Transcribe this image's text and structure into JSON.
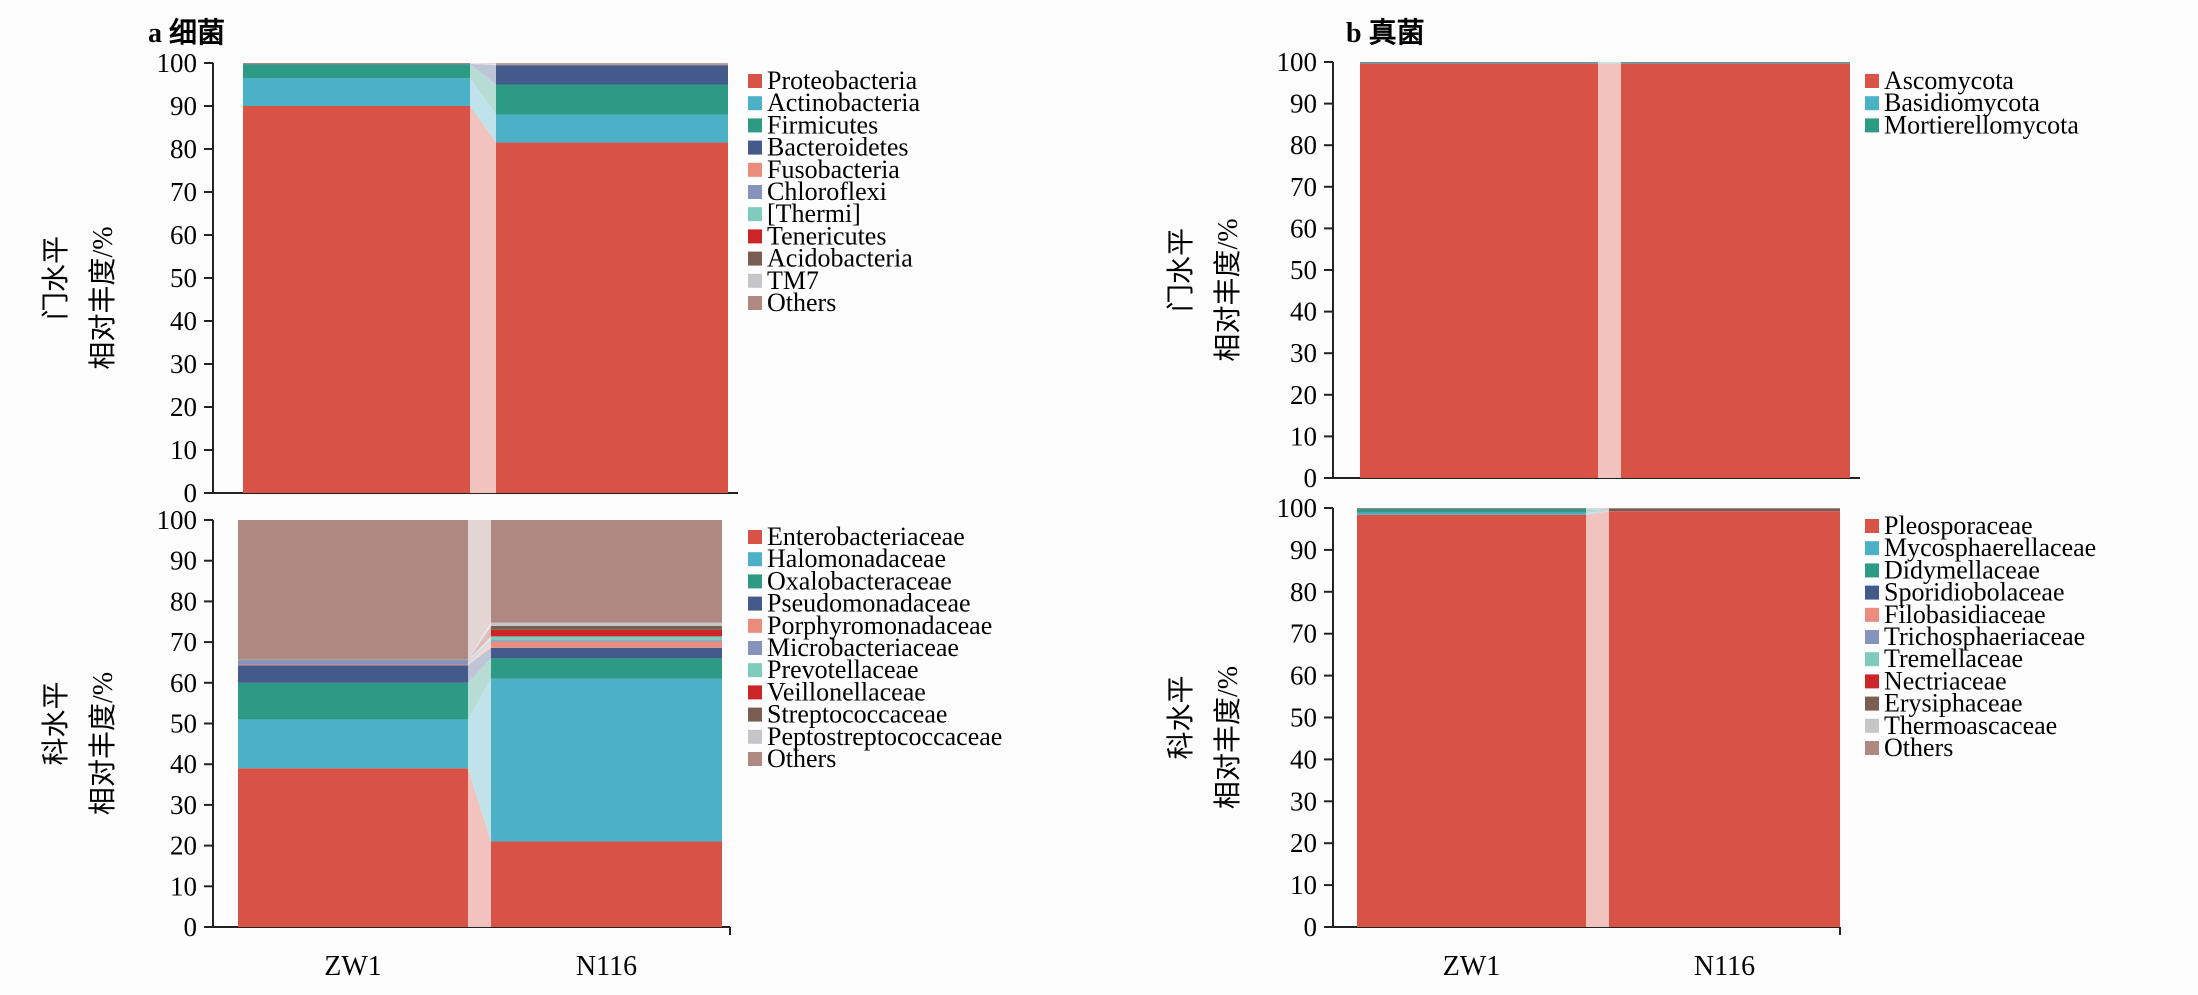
{
  "colors": {
    "red": "#d95246",
    "cyan": "#4cb0c6",
    "teal": "#2d9a85",
    "navy": "#445a8a",
    "salmon": "#ea8c7e",
    "lavender": "#8594bd",
    "mint": "#7fcbbd",
    "crimson": "#cc2528",
    "brown": "#7a5e52",
    "silver": "#c6c6c8",
    "mauve": "#b08882"
  },
  "panels": {
    "a": {
      "title": "a 细菌"
    },
    "b": {
      "title": "b 真菌"
    }
  },
  "chart_data": [
    {
      "id": "a-phylum",
      "type": "bar",
      "stacked": true,
      "title": "a 细菌",
      "ylabel_level": "门水平",
      "ylabel": "相对丰度/%",
      "ylim": [
        0,
        100
      ],
      "yticks": [
        0,
        10,
        20,
        30,
        40,
        50,
        60,
        70,
        80,
        90,
        100
      ],
      "categories": [
        "ZW1",
        "N116"
      ],
      "show_xlabels": false,
      "series": [
        {
          "name": "Proteobacteria",
          "color": "red",
          "values": [
            90.0,
            81.5
          ]
        },
        {
          "name": "Actinobacteria",
          "color": "cyan",
          "values": [
            6.5,
            6.5
          ]
        },
        {
          "name": "Firmicutes",
          "color": "teal",
          "values": [
            3.2,
            7.0
          ]
        },
        {
          "name": "Bacteroidetes",
          "color": "navy",
          "values": [
            0.1,
            4.5
          ]
        },
        {
          "name": "Fusobacteria",
          "color": "salmon",
          "values": [
            0.05,
            0.1
          ]
        },
        {
          "name": "Chloroflexi",
          "color": "lavender",
          "values": [
            0.05,
            0.1
          ]
        },
        {
          "name": "[Thermi]",
          "color": "mint",
          "values": [
            0.05,
            0.1
          ]
        },
        {
          "name": "Tenericutes",
          "color": "crimson",
          "values": [
            0.02,
            0.05
          ]
        },
        {
          "name": "Acidobacteria",
          "color": "brown",
          "values": [
            0.01,
            0.02
          ]
        },
        {
          "name": "TM7",
          "color": "silver",
          "values": [
            0.01,
            0.02
          ]
        },
        {
          "name": "Others",
          "color": "mauve",
          "values": [
            0.01,
            0.11
          ]
        }
      ]
    },
    {
      "id": "a-family",
      "type": "bar",
      "stacked": true,
      "ylabel_level": "科水平",
      "ylabel": "相对丰度/%",
      "ylim": [
        0,
        100
      ],
      "yticks": [
        0,
        10,
        20,
        30,
        40,
        50,
        60,
        70,
        80,
        90,
        100
      ],
      "categories": [
        "ZW1",
        "N116"
      ],
      "show_xlabels": true,
      "series": [
        {
          "name": "Enterobacteriaceae",
          "color": "red",
          "values": [
            39.0,
            21.0
          ]
        },
        {
          "name": "Halomonadaceae",
          "color": "cyan",
          "values": [
            12.0,
            40.0
          ]
        },
        {
          "name": "Oxalobacteraceae",
          "color": "teal",
          "values": [
            9.0,
            5.0
          ]
        },
        {
          "name": "Pseudomonadaceae",
          "color": "navy",
          "values": [
            4.3,
            2.6
          ]
        },
        {
          "name": "Porphyromonadaceae",
          "color": "salmon",
          "values": [
            0.2,
            1.5
          ]
        },
        {
          "name": "Microbacteriaceae",
          "color": "lavender",
          "values": [
            1.0,
            0.3
          ]
        },
        {
          "name": "Prevotellaceae",
          "color": "mint",
          "values": [
            0.1,
            1.0
          ]
        },
        {
          "name": "Veillonellaceae",
          "color": "crimson",
          "values": [
            0.1,
            1.6
          ]
        },
        {
          "name": "Streptococcaceae",
          "color": "brown",
          "values": [
            0.05,
            1.0
          ]
        },
        {
          "name": "Peptostreptococcaceae",
          "color": "silver",
          "values": [
            0.05,
            0.8
          ]
        },
        {
          "name": "Others",
          "color": "mauve",
          "values": [
            34.2,
            25.2
          ]
        }
      ]
    },
    {
      "id": "b-phylum",
      "type": "bar",
      "stacked": true,
      "title": "b 真菌",
      "ylabel_level": "门水平",
      "ylabel": "相对丰度/%",
      "ylim": [
        0,
        100
      ],
      "yticks": [
        0,
        10,
        20,
        30,
        40,
        50,
        60,
        70,
        80,
        90,
        100
      ],
      "categories": [
        "ZW1",
        "N116"
      ],
      "show_xlabels": false,
      "series": [
        {
          "name": "Ascomycota",
          "color": "red",
          "values": [
            99.7,
            99.7
          ]
        },
        {
          "name": "Basidiomycota",
          "color": "cyan",
          "values": [
            0.25,
            0.25
          ]
        },
        {
          "name": "Mortierellomycota",
          "color": "teal",
          "values": [
            0.05,
            0.05
          ]
        }
      ]
    },
    {
      "id": "b-family",
      "type": "bar",
      "stacked": true,
      "ylabel_level": "科水平",
      "ylabel": "相对丰度/%",
      "ylim": [
        0,
        100
      ],
      "yticks": [
        0,
        10,
        20,
        30,
        40,
        50,
        60,
        70,
        80,
        90,
        100
      ],
      "categories": [
        "ZW1",
        "N116"
      ],
      "show_xlabels": true,
      "series": [
        {
          "name": "Pleosporaceae",
          "color": "red",
          "values": [
            98.4,
            99.2
          ]
        },
        {
          "name": "Mycosphaerellaceae",
          "color": "cyan",
          "values": [
            0.5,
            0.05
          ]
        },
        {
          "name": "Didymellaceae",
          "color": "teal",
          "values": [
            1.0,
            0.05
          ]
        },
        {
          "name": "Sporidiobolaceae",
          "color": "navy",
          "values": [
            0.02,
            0.02
          ]
        },
        {
          "name": "Filobasidiaceae",
          "color": "salmon",
          "values": [
            0.02,
            0.02
          ]
        },
        {
          "name": "Trichosphaeriaceae",
          "color": "lavender",
          "values": [
            0.01,
            0.02
          ]
        },
        {
          "name": "Tremellaceae",
          "color": "mint",
          "values": [
            0.01,
            0.02
          ]
        },
        {
          "name": "Nectriaceae",
          "color": "crimson",
          "values": [
            0.01,
            0.02
          ]
        },
        {
          "name": "Erysiphaceae",
          "color": "brown",
          "values": [
            0.01,
            0.5
          ]
        },
        {
          "name": "Thermoascaceae",
          "color": "silver",
          "values": [
            0.01,
            0.05
          ]
        },
        {
          "name": "Others",
          "color": "mauve",
          "values": [
            0.01,
            0.05
          ]
        }
      ]
    }
  ]
}
